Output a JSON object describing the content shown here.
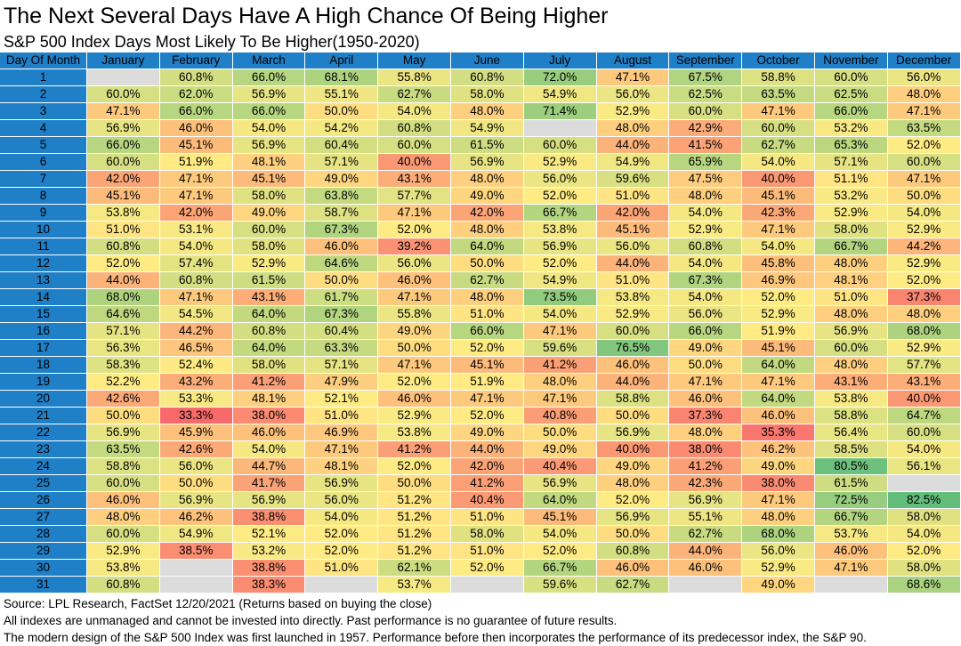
{
  "title": "The Next Several Days Have A High Chance Of Being Higher",
  "subtitle": "S&P 500 Index Days Most Likely To Be Higher(1950-2020)",
  "footer": [
    "Source: LPL Research, FactSet 12/20/2021 (Returns based on buying the close)",
    "All indexes are unmanaged and cannot be invested into directly. Past performance is no guarantee of future results.",
    "The modern design of the S&P 500 Index was first launched in 1957. Performance before then incorporates the performance of its predecessor index, the S&P 90."
  ],
  "colors": {
    "header_blue": "#1f7fc7",
    "empty": "#dcdcdc",
    "low": "#f8696b",
    "mid": "#ffeb84",
    "high": "#63be7b"
  },
  "chart_data": {
    "type": "heatmap",
    "row_header_label": "Day Of Month",
    "columns": [
      "January",
      "February",
      "March",
      "April",
      "May",
      "June",
      "July",
      "August",
      "September",
      "October",
      "November",
      "December"
    ],
    "rows": [
      "1",
      "2",
      "3",
      "4",
      "5",
      "6",
      "7",
      "8",
      "9",
      "10",
      "11",
      "12",
      "13",
      "14",
      "15",
      "16",
      "17",
      "18",
      "19",
      "20",
      "21",
      "22",
      "23",
      "24",
      "25",
      "26",
      "27",
      "28",
      "29",
      "30",
      "31"
    ],
    "values": [
      [
        null,
        "60.8%",
        "66.0%",
        "68.1%",
        "55.8%",
        "60.8%",
        "72.0%",
        "47.1%",
        "67.5%",
        "58.8%",
        "60.0%",
        "56.0%"
      ],
      [
        "60.0%",
        "62.0%",
        "56.9%",
        "55.1%",
        "62.7%",
        "58.0%",
        "54.9%",
        "56.0%",
        "62.5%",
        "63.5%",
        "62.5%",
        "48.0%"
      ],
      [
        "47.1%",
        "66.0%",
        "66.0%",
        "50.0%",
        "54.0%",
        "48.0%",
        "71.4%",
        "52.9%",
        "60.0%",
        "47.1%",
        "66.0%",
        "47.1%"
      ],
      [
        "56.9%",
        "46.0%",
        "54.0%",
        "54.2%",
        "60.8%",
        "54.9%",
        null,
        "48.0%",
        "42.9%",
        "60.0%",
        "53.2%",
        "63.5%"
      ],
      [
        "66.0%",
        "45.1%",
        "56.9%",
        "60.4%",
        "60.0%",
        "61.5%",
        "60.0%",
        "44.0%",
        "41.5%",
        "62.7%",
        "65.3%",
        "52.0%"
      ],
      [
        "60.0%",
        "51.9%",
        "48.1%",
        "57.1%",
        "40.0%",
        "56.9%",
        "52.9%",
        "54.9%",
        "65.9%",
        "54.0%",
        "57.1%",
        "60.0%"
      ],
      [
        "42.0%",
        "47.1%",
        "45.1%",
        "49.0%",
        "43.1%",
        "48.0%",
        "56.0%",
        "59.6%",
        "47.5%",
        "40.0%",
        "51.1%",
        "47.1%"
      ],
      [
        "45.1%",
        "47.1%",
        "58.0%",
        "63.8%",
        "57.7%",
        "49.0%",
        "52.0%",
        "51.0%",
        "48.0%",
        "45.1%",
        "53.2%",
        "50.0%"
      ],
      [
        "53.8%",
        "42.0%",
        "49.0%",
        "58.7%",
        "47.1%",
        "42.0%",
        "66.7%",
        "42.0%",
        "54.0%",
        "42.3%",
        "52.9%",
        "54.0%"
      ],
      [
        "51.0%",
        "53.1%",
        "60.0%",
        "67.3%",
        "52.0%",
        "48.0%",
        "53.8%",
        "45.1%",
        "52.9%",
        "47.1%",
        "58.0%",
        "52.9%"
      ],
      [
        "60.8%",
        "54.0%",
        "58.0%",
        "46.0%",
        "39.2%",
        "64.0%",
        "56.9%",
        "56.0%",
        "60.8%",
        "54.0%",
        "66.7%",
        "44.2%"
      ],
      [
        "52.0%",
        "57.4%",
        "52.9%",
        "64.6%",
        "56.0%",
        "50.0%",
        "52.0%",
        "44.0%",
        "54.0%",
        "45.8%",
        "48.0%",
        "52.9%"
      ],
      [
        "44.0%",
        "60.8%",
        "61.5%",
        "50.0%",
        "46.0%",
        "62.7%",
        "54.9%",
        "51.0%",
        "67.3%",
        "46.9%",
        "48.1%",
        "52.0%"
      ],
      [
        "68.0%",
        "47.1%",
        "43.1%",
        "61.7%",
        "47.1%",
        "48.0%",
        "73.5%",
        "53.8%",
        "54.0%",
        "52.0%",
        "51.0%",
        "37.3%"
      ],
      [
        "64.6%",
        "54.5%",
        "64.0%",
        "67.3%",
        "55.8%",
        "51.0%",
        "54.0%",
        "52.9%",
        "56.0%",
        "52.9%",
        "48.0%",
        "48.0%"
      ],
      [
        "57.1%",
        "44.2%",
        "60.8%",
        "60.4%",
        "49.0%",
        "66.0%",
        "47.1%",
        "60.0%",
        "66.0%",
        "51.9%",
        "56.9%",
        "68.0%"
      ],
      [
        "56.3%",
        "46.5%",
        "64.0%",
        "63.3%",
        "50.0%",
        "52.0%",
        "59.6%",
        "76.5%",
        "49.0%",
        "45.1%",
        "60.0%",
        "52.9%"
      ],
      [
        "58.3%",
        "52.4%",
        "58.0%",
        "57.1%",
        "47.1%",
        "45.1%",
        "41.2%",
        "46.0%",
        "50.0%",
        "64.0%",
        "48.0%",
        "57.7%"
      ],
      [
        "52.2%",
        "43.2%",
        "41.2%",
        "47.9%",
        "52.0%",
        "51.9%",
        "48.0%",
        "44.0%",
        "47.1%",
        "47.1%",
        "43.1%",
        "43.1%"
      ],
      [
        "42.6%",
        "53.3%",
        "48.1%",
        "52.1%",
        "46.0%",
        "47.1%",
        "47.1%",
        "58.8%",
        "46.0%",
        "64.0%",
        "53.8%",
        "40.0%"
      ],
      [
        "50.0%",
        "33.3%",
        "38.0%",
        "51.0%",
        "52.9%",
        "52.0%",
        "40.8%",
        "50.0%",
        "37.3%",
        "46.0%",
        "58.8%",
        "64.7%"
      ],
      [
        "56.9%",
        "45.9%",
        "46.0%",
        "46.9%",
        "53.8%",
        "49.0%",
        "50.0%",
        "56.9%",
        "48.0%",
        "35.3%",
        "56.4%",
        "60.0%"
      ],
      [
        "63.5%",
        "42.6%",
        "54.0%",
        "47.1%",
        "41.2%",
        "44.0%",
        "49.0%",
        "40.0%",
        "38.0%",
        "46.2%",
        "58.5%",
        "54.0%"
      ],
      [
        "58.8%",
        "56.0%",
        "44.7%",
        "48.1%",
        "52.0%",
        "42.0%",
        "40.4%",
        "49.0%",
        "41.2%",
        "49.0%",
        "80.5%",
        "56.1%"
      ],
      [
        "60.0%",
        "50.0%",
        "41.7%",
        "56.9%",
        "50.0%",
        "41.2%",
        "56.9%",
        "48.0%",
        "42.3%",
        "38.0%",
        "61.5%",
        null
      ],
      [
        "46.0%",
        "56.9%",
        "56.9%",
        "56.0%",
        "51.2%",
        "40.4%",
        "64.0%",
        "52.0%",
        "56.9%",
        "47.1%",
        "72.5%",
        "82.5%"
      ],
      [
        "48.0%",
        "46.2%",
        "38.8%",
        "54.0%",
        "51.2%",
        "51.0%",
        "45.1%",
        "56.9%",
        "55.1%",
        "48.0%",
        "66.7%",
        "58.0%"
      ],
      [
        "60.0%",
        "54.9%",
        "52.1%",
        "52.0%",
        "51.2%",
        "58.0%",
        "54.0%",
        "50.0%",
        "62.7%",
        "68.0%",
        "53.7%",
        "54.0%"
      ],
      [
        "52.9%",
        "38.5%",
        "53.2%",
        "52.0%",
        "51.2%",
        "51.0%",
        "52.0%",
        "60.8%",
        "44.0%",
        "56.0%",
        "46.0%",
        "52.0%"
      ],
      [
        "53.8%",
        null,
        "38.8%",
        "51.0%",
        "62.1%",
        "52.0%",
        "66.7%",
        "46.0%",
        "46.0%",
        "52.9%",
        "47.1%",
        "58.0%"
      ],
      [
        "60.8%",
        null,
        "38.3%",
        null,
        "53.7%",
        null,
        "59.6%",
        "62.7%",
        null,
        "49.0%",
        null,
        "68.6%"
      ]
    ],
    "color_scale": {
      "min": 33.3,
      "mid": 52.0,
      "max": 82.5
    }
  }
}
